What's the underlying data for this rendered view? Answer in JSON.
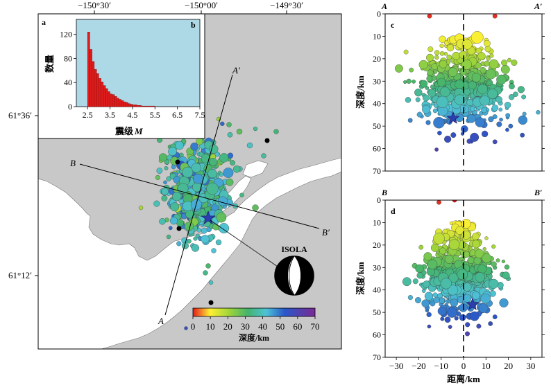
{
  "map": {
    "panel_label": "a",
    "lon_ticks": [
      "−150°30′",
      "−150°00′",
      "−149°30′"
    ],
    "lat_ticks": [
      "61°36′",
      "61°12′"
    ],
    "profile_ends": {
      "a": "A",
      "a_prime": "A′",
      "b": "B",
      "b_prime": "B′"
    },
    "mechanism_label": "ISOLA",
    "colorbar": {
      "ticks": [
        0,
        10,
        20,
        30,
        40,
        50,
        60,
        70
      ],
      "label": "深度/km"
    },
    "colors": {
      "land": "#c8c8c8",
      "water": "#ffffff",
      "mainshock": "#2a3fb0"
    }
  },
  "histogram": {
    "panel_label": "b",
    "ylabel": "数量",
    "xlabel": "震级",
    "xlabel_var": "M",
    "chart_data": {
      "type": "bar",
      "x_ticks": [
        2.5,
        3.5,
        4.5,
        5.5,
        6.5,
        7.5
      ],
      "x_tick_labels": [
        "2.5",
        "3.5",
        "4.5",
        "5.5",
        "6.5",
        "7.5"
      ],
      "y_ticks": [
        0,
        40,
        80,
        120
      ],
      "xlim": [
        2,
        7.5
      ],
      "ylim": [
        0,
        145
      ],
      "bin_width": 0.1,
      "bin_start": [
        2.5,
        2.6,
        2.7,
        2.8,
        2.9,
        3.0,
        3.1,
        3.2,
        3.3,
        3.4,
        3.5,
        3.6,
        3.7,
        3.8,
        3.9,
        4.0,
        4.1,
        4.2,
        4.3,
        4.4,
        4.5,
        4.6,
        4.7,
        4.8,
        4.9,
        5.0,
        5.1,
        5.2,
        5.3,
        5.4
      ],
      "counts": [
        124,
        95,
        75,
        62,
        55,
        47,
        41,
        35,
        30,
        25,
        21,
        20,
        17,
        14,
        12,
        10,
        8,
        7,
        5,
        4,
        3,
        3,
        2,
        2,
        1,
        1,
        1,
        1,
        1,
        1
      ],
      "bar_color": "#e01c1c",
      "plot_background": "#add8e6"
    }
  },
  "profile_c": {
    "panel_label": "c",
    "left_end": "A",
    "right_end": "A′",
    "ylabel": "深度/km",
    "chart_data": {
      "type": "scatter",
      "xlim": [
        -30,
        30
      ],
      "ylim": [
        0,
        70
      ],
      "y_ticks": [
        0,
        10,
        20,
        30,
        40,
        50,
        60,
        70
      ],
      "color_scale": "depth 0-70 km",
      "mainshock": {
        "x": -4,
        "y": 46.5
      },
      "notable_events": [
        {
          "x": -13,
          "y": 1
        },
        {
          "x": 12,
          "y": 1
        },
        {
          "x": -22,
          "y": 17
        },
        {
          "x": -20,
          "y": 25
        },
        {
          "x": 23,
          "y": 37
        },
        {
          "x": 18,
          "y": 50
        },
        {
          "x": 12,
          "y": 57
        }
      ]
    }
  },
  "profile_d": {
    "panel_label": "d",
    "left_end": "B",
    "right_end": "B′",
    "ylabel": "深度/km",
    "xlabel": "距离/km",
    "chart_data": {
      "type": "scatter",
      "xlim": [
        -35,
        35
      ],
      "ylim": [
        0,
        70
      ],
      "x_ticks": [
        -30,
        -20,
        -10,
        0,
        10,
        20,
        30
      ],
      "y_ticks": [
        0,
        10,
        20,
        30,
        40,
        50,
        60,
        70
      ],
      "color_scale": "depth 0-70 km",
      "mainshock": {
        "x": 4,
        "y": 46.5
      },
      "notable_events": [
        {
          "x": -11,
          "y": 1
        },
        {
          "x": -4,
          "y": 0
        },
        {
          "x": -19,
          "y": 21
        },
        {
          "x": -15,
          "y": 28
        },
        {
          "x": 20,
          "y": 35
        },
        {
          "x": 14,
          "y": 52
        },
        {
          "x": 12,
          "y": 55
        }
      ]
    }
  }
}
